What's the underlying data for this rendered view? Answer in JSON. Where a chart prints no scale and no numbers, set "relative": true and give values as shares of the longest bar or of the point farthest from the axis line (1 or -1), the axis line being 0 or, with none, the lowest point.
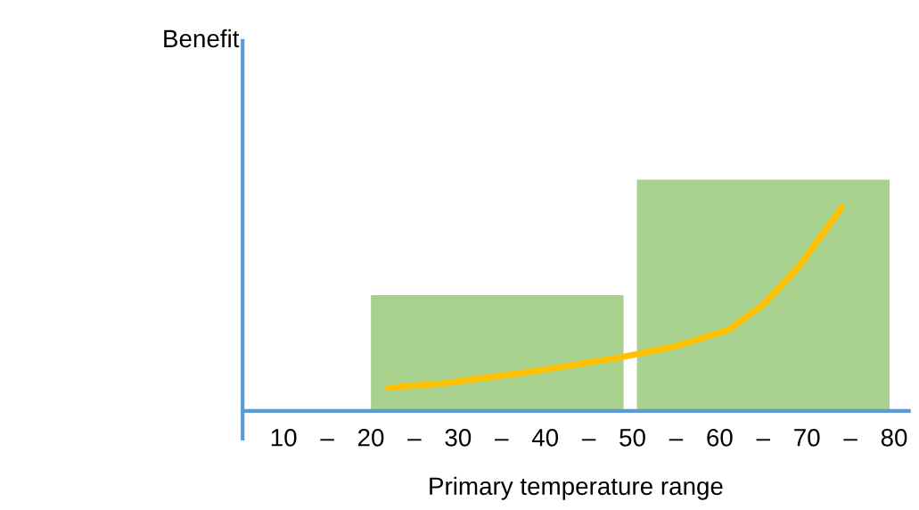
{
  "chart_data": {
    "type": "bar",
    "annotations": [
      "Benefit"
    ],
    "xlabel": "Primary temperature range",
    "relative": true,
    "xlim": [
      5.3,
      81.7
    ],
    "xticks": [
      10,
      {
        "value": 15,
        "label": "–"
      },
      20,
      {
        "value": 25,
        "label": "–"
      },
      30,
      {
        "value": 35,
        "label": "–"
      },
      40,
      {
        "value": 45,
        "label": "–"
      },
      50,
      {
        "value": 55,
        "label": "–"
      },
      60,
      {
        "value": 65,
        "label": "–"
      },
      70,
      {
        "value": 75,
        "label": "–"
      },
      80
    ],
    "grid": false,
    "legend": false,
    "series": [
      {
        "color": "#a9d18e",
        "x": [
          34.5,
          65
        ],
        "values": [
          0.5,
          1
        ]
      },
      {
        "type": "line",
        "color": "#ffc000",
        "x": [
          22,
          28.5,
          38.5,
          48.5,
          55,
          61,
          65,
          69,
          74
        ],
        "values": [
          0.1,
          0.12,
          0.17,
          0.23,
          0.28,
          0.35,
          0.46,
          0.62,
          0.88
        ]
      }
    ]
  }
}
